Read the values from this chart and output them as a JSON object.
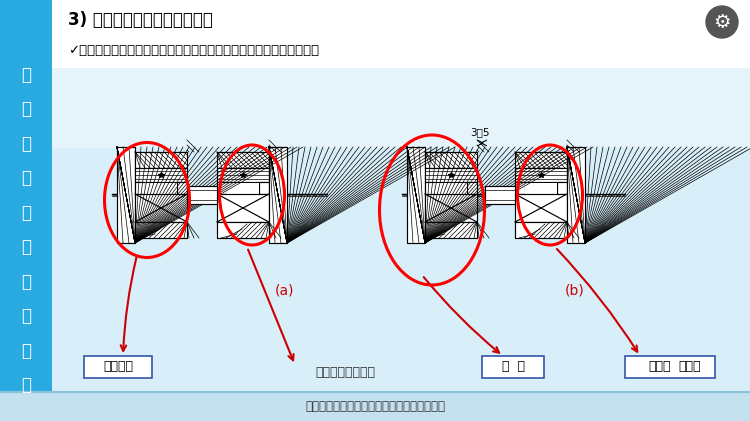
{
  "title": "3) 机器结构应便于装配和拆卸",
  "subtitle": "✓组件的几个表面不应同时装入基准零件配合孔中，而应先后依次装配",
  "left_sidebar_text": "机械基础知识课程培训",
  "sidebar_color": "#29ABE2",
  "main_bg": "#E8F4FB",
  "label_a": "(a)",
  "label_b": "(b)",
  "box_label1": "同时装入",
  "box_label2": "轴依次装配的结构",
  "box_label3": "后  装",
  "box_label4_p1": "先装且",
  "box_label4_p2": "直径小",
  "dim_label": "3～5",
  "footer_text": "公众号《机械工程文萝》，工程师的加油站！",
  "sidebar_color2": "#29ABE2",
  "footer_bg": "#C5E0EE",
  "top_bg": "#FFFFFF",
  "drawing_bg": "#D6EAF5"
}
